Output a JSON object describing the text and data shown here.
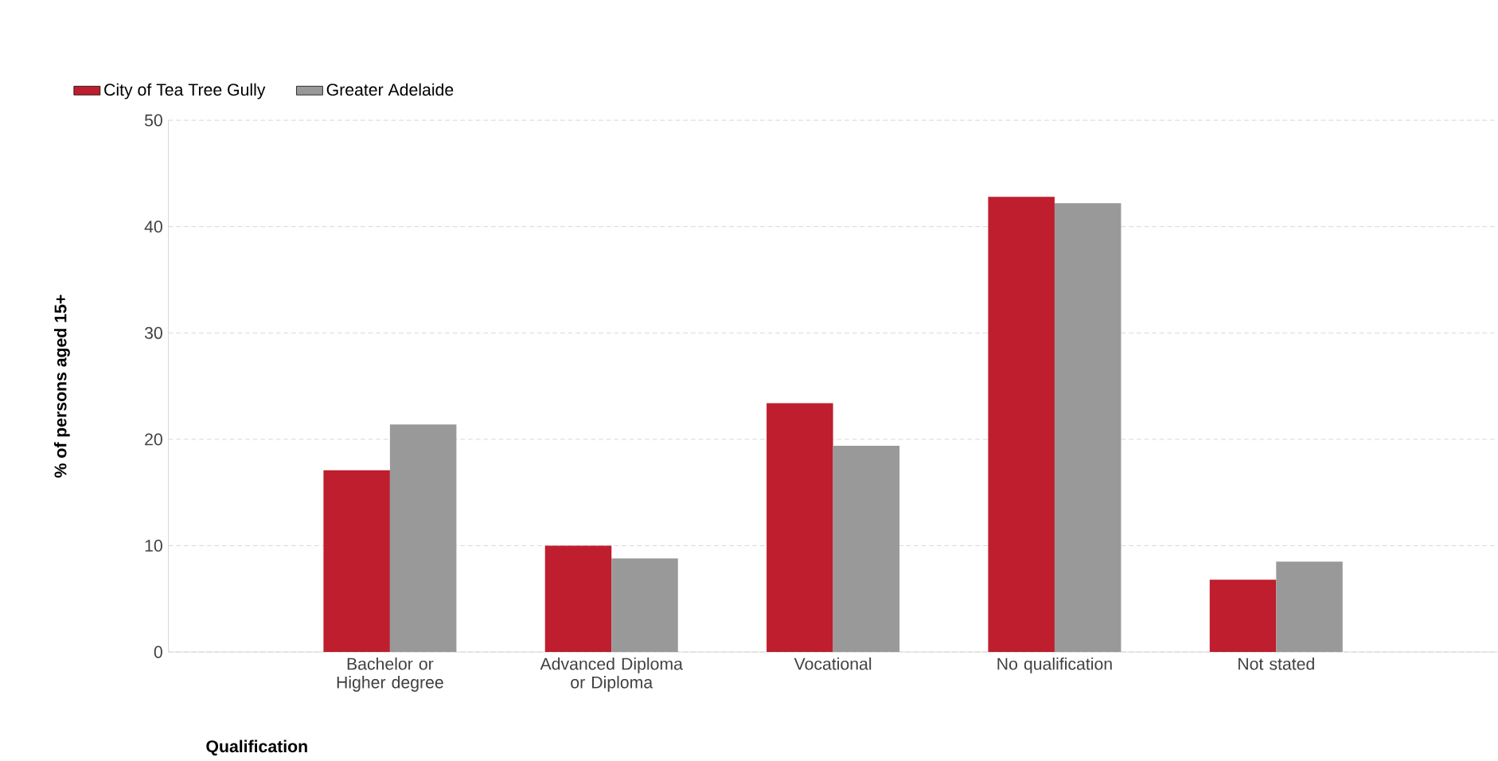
{
  "chart_data": {
    "type": "bar",
    "xlabel": "Qualification",
    "ylabel": "% of persons aged 15+",
    "categories": [
      "Bachelor or Higher degree",
      "Advanced Diploma or Diploma",
      "Vocational",
      "No qualification",
      "Not stated"
    ],
    "series": [
      {
        "name": "City of Tea Tree Gully",
        "color": "#be1e2d",
        "values": [
          17.1,
          10.0,
          23.4,
          42.8,
          6.8
        ]
      },
      {
        "name": "Greater Adelaide",
        "color": "#999999",
        "values": [
          21.4,
          8.8,
          19.4,
          42.2,
          8.5
        ]
      }
    ],
    "ylim": [
      0,
      50
    ],
    "yticks": [
      0,
      10,
      20,
      30,
      40,
      50
    ],
    "grid": "y",
    "legend": "top left"
  }
}
